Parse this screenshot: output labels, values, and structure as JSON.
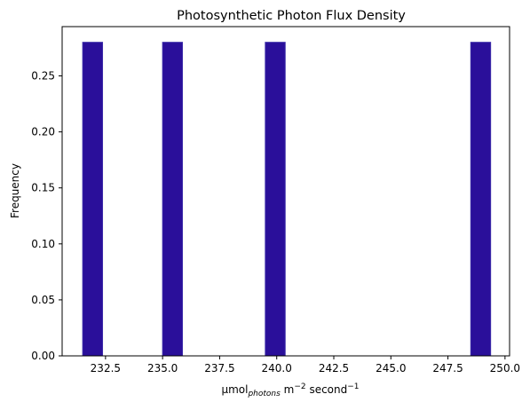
{
  "chart_data": {
    "type": "bar",
    "title": "Photosynthetic Photon Flux Density",
    "xlabel": {
      "base": "μmol",
      "subscript": "photons",
      "unit_m": " m",
      "sup1": "−2",
      "unit_s": " second",
      "sup2": "−1"
    },
    "ylabel": "Frequency",
    "bar_color": "#2a0f9a",
    "bar_edge_color": "#3a2aa8",
    "bars": [
      {
        "x0": 231.5,
        "x1": 232.37,
        "value": 0.28
      },
      {
        "x0": 235.0,
        "x1": 235.87,
        "value": 0.28
      },
      {
        "x0": 239.5,
        "x1": 240.37,
        "value": 0.28
      },
      {
        "x0": 248.5,
        "x1": 249.37,
        "value": 0.28
      }
    ],
    "xlim": [
      230.6,
      250.2
    ],
    "ylim": [
      0,
      0.294
    ],
    "xticks": [
      232.5,
      235.0,
      237.5,
      240.0,
      242.5,
      245.0,
      247.5,
      250.0
    ],
    "xtick_labels": [
      "232.5",
      "235.0",
      "237.5",
      "240.0",
      "242.5",
      "245.0",
      "247.5",
      "250.0"
    ],
    "yticks": [
      0.0,
      0.05,
      0.1,
      0.15,
      0.2,
      0.25
    ],
    "ytick_labels": [
      "0.00",
      "0.05",
      "0.10",
      "0.15",
      "0.20",
      "0.25"
    ],
    "grid": false,
    "legend": "none"
  }
}
